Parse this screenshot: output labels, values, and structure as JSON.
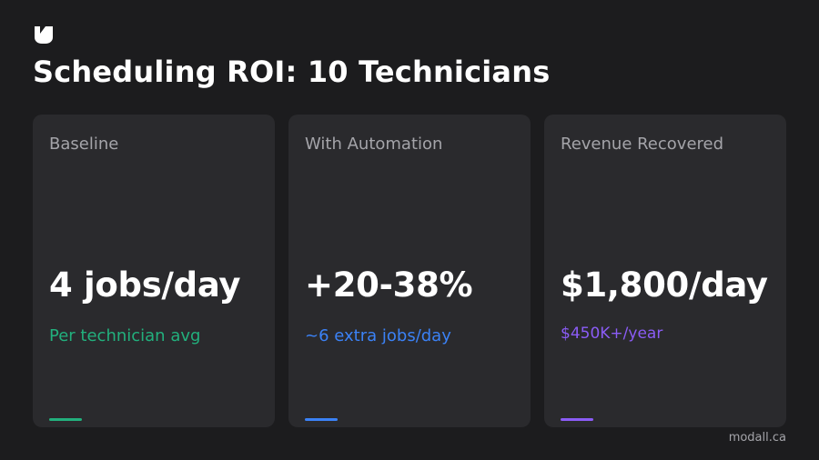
{
  "slide": {
    "title": "Scheduling ROI: 10 Technicians",
    "logo_icon": "brand-logo-icon",
    "footer": "modall.ca"
  },
  "cards": [
    {
      "label": "Baseline",
      "value": "4 jobs/day",
      "subtext": "Per technician avg",
      "accent": "#22b07d"
    },
    {
      "label": "With Automation",
      "value": "+20-38%",
      "subtext": "~6 extra jobs/day",
      "accent": "#3b82f6"
    },
    {
      "label": "Revenue Recovered",
      "value": "$1,800/day",
      "subtext": "$450K+/year",
      "accent": "#8b5cf6"
    }
  ]
}
